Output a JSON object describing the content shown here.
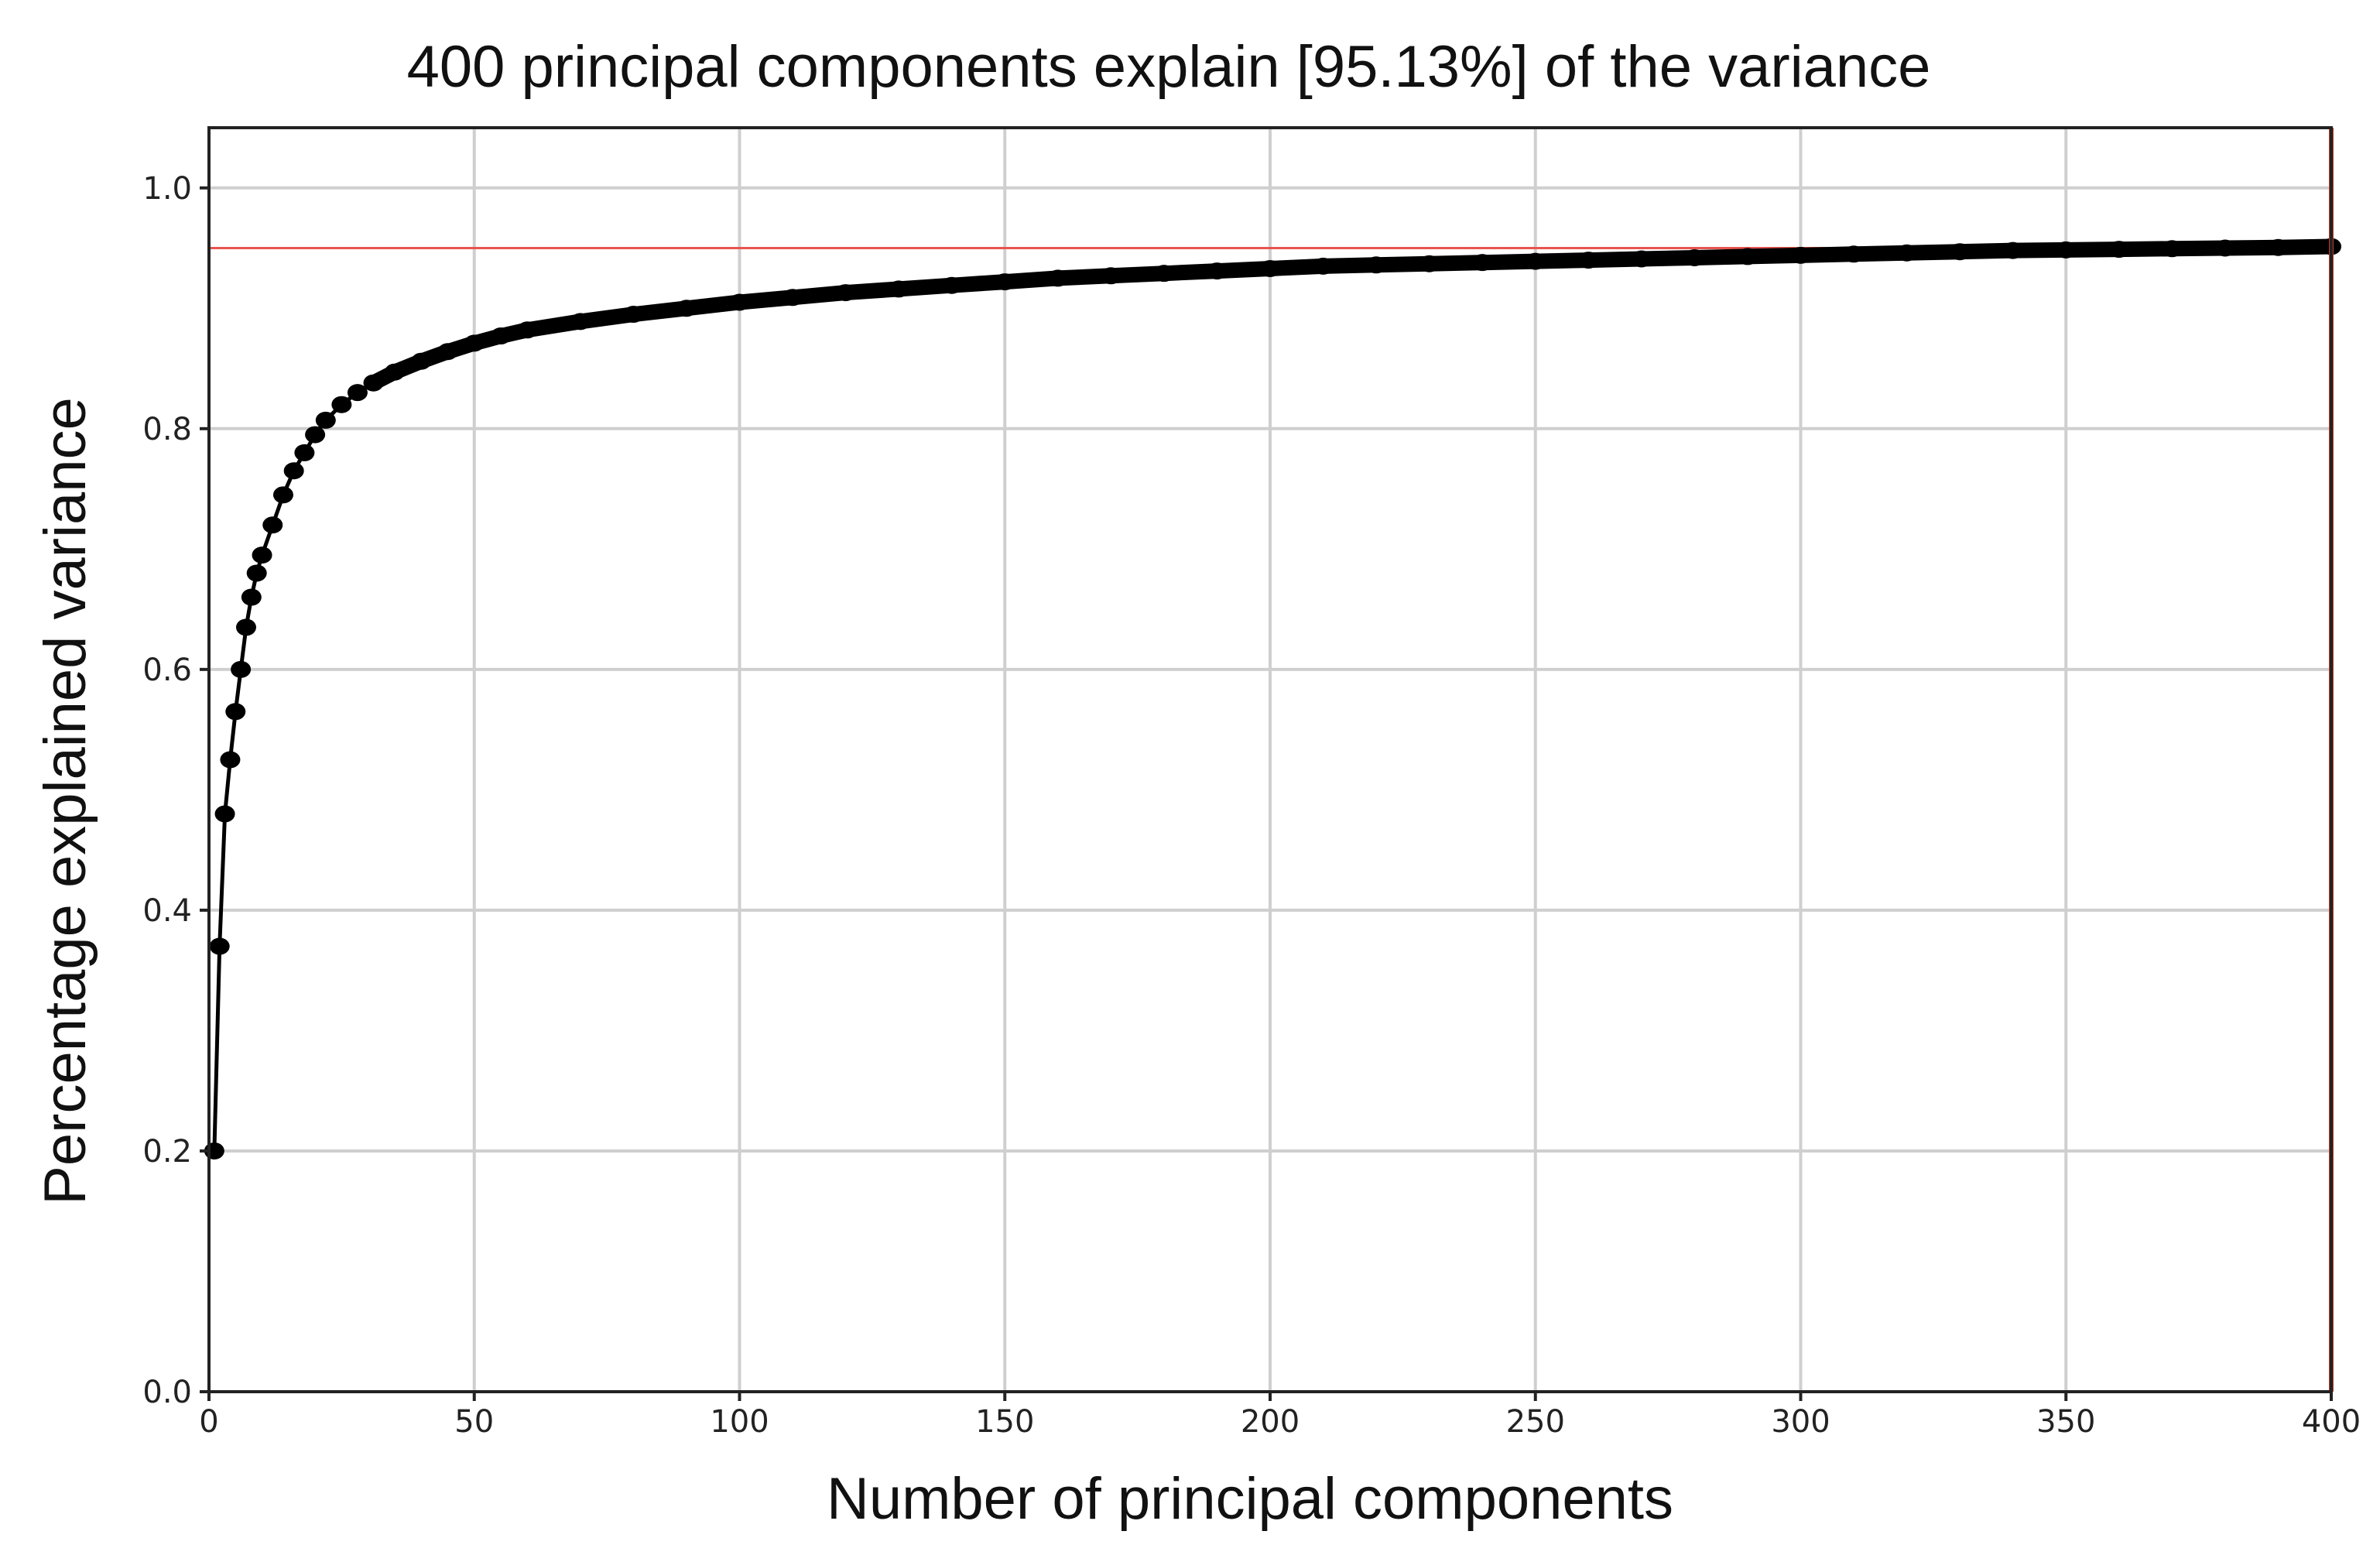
{
  "chart_data": {
    "type": "line",
    "title": "400 principal components explain [95.13%] of the variance",
    "xlabel": "Number of principal components",
    "ylabel": "Percentage explained variance",
    "xlim": [
      0,
      400
    ],
    "ylim": [
      0,
      1.05
    ],
    "x_ticks": [
      0,
      50,
      100,
      150,
      200,
      250,
      300,
      350,
      400
    ],
    "x_tick_labels": [
      "0",
      "50",
      "100",
      "150",
      "200",
      "250",
      "300",
      "350",
      "400"
    ],
    "y_ticks": [
      0.0,
      0.2,
      0.4,
      0.6,
      0.8,
      1.0
    ],
    "y_tick_labels": [
      "0.0",
      "0.2",
      "0.4",
      "0.6",
      "0.8",
      "1.0"
    ],
    "grid": true,
    "threshold_line": {
      "y": 0.95,
      "color": "#e8554e"
    },
    "vertical_line": {
      "x": 400,
      "color": "#c0392b"
    },
    "series": [
      {
        "color": "#000000",
        "marker": "circle",
        "x": [
          1,
          2,
          3,
          4,
          5,
          6,
          7,
          8,
          9,
          10,
          12,
          14,
          16,
          18,
          20,
          22,
          25,
          28,
          31,
          35,
          40,
          45,
          50,
          55,
          60,
          70,
          80,
          90,
          100,
          110,
          120,
          130,
          140,
          150,
          160,
          170,
          180,
          190,
          200,
          210,
          220,
          230,
          240,
          250,
          260,
          270,
          280,
          290,
          300,
          310,
          320,
          330,
          340,
          350,
          360,
          370,
          380,
          390,
          400
        ],
        "y": [
          0.2,
          0.37,
          0.48,
          0.525,
          0.565,
          0.6,
          0.635,
          0.66,
          0.68,
          0.695,
          0.72,
          0.745,
          0.765,
          0.78,
          0.795,
          0.807,
          0.82,
          0.83,
          0.838,
          0.847,
          0.856,
          0.864,
          0.871,
          0.877,
          0.882,
          0.889,
          0.895,
          0.9,
          0.905,
          0.909,
          0.913,
          0.916,
          0.919,
          0.922,
          0.925,
          0.927,
          0.929,
          0.931,
          0.933,
          0.935,
          0.936,
          0.937,
          0.938,
          0.939,
          0.94,
          0.941,
          0.942,
          0.943,
          0.944,
          0.945,
          0.946,
          0.947,
          0.948,
          0.9485,
          0.949,
          0.9495,
          0.95,
          0.9505,
          0.9513
        ]
      }
    ]
  }
}
